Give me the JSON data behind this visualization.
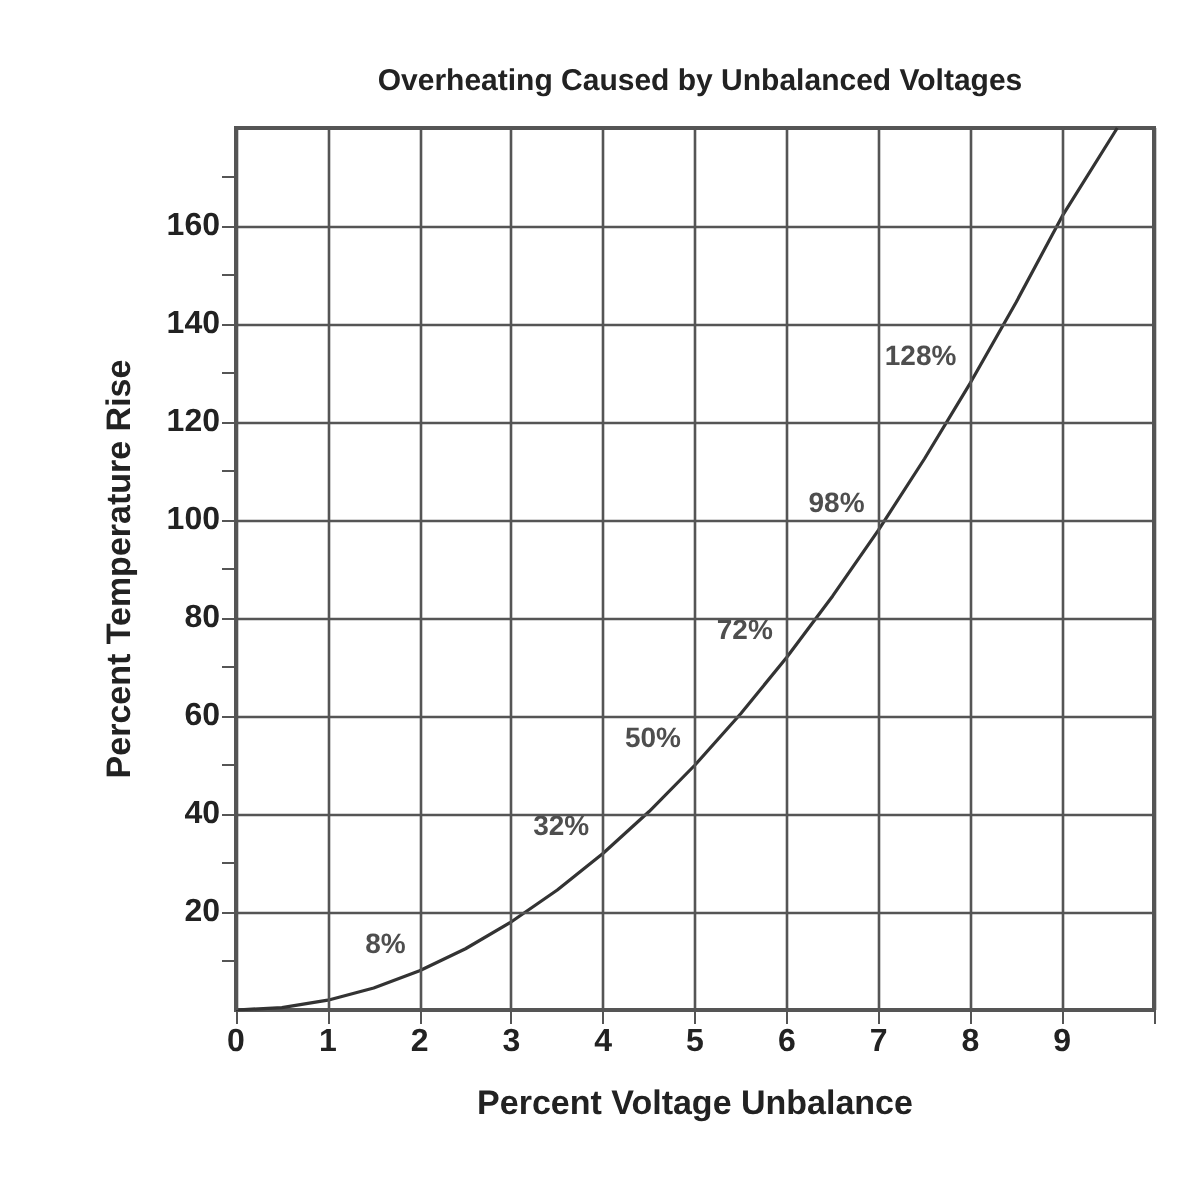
{
  "chart_data": {
    "type": "line",
    "title": "Overheating Caused by Unbalanced Voltages",
    "xlabel": "Percent Voltage Unbalance",
    "ylabel": "Percent Temperature Rise",
    "x": [
      0,
      0.5,
      1,
      1.5,
      2,
      2.5,
      3,
      3.5,
      4,
      4.5,
      5,
      5.5,
      6,
      6.5,
      7,
      7.5,
      8,
      8.5,
      9,
      9.6
    ],
    "series": [
      {
        "color": "#333333",
        "values": [
          0,
          0.5,
          2,
          4.5,
          8,
          12.5,
          18,
          24.5,
          32,
          40.5,
          50,
          60.5,
          72,
          84.5,
          98,
          112.5,
          128,
          144.5,
          162,
          180
        ]
      }
    ],
    "annotations": [
      {
        "text": "8%",
        "x": 2,
        "y": 8
      },
      {
        "text": "32%",
        "x": 4,
        "y": 32
      },
      {
        "text": "50%",
        "x": 5,
        "y": 50
      },
      {
        "text": "72%",
        "x": 6,
        "y": 72
      },
      {
        "text": "98%",
        "x": 7,
        "y": 98
      },
      {
        "text": "128%",
        "x": 8,
        "y": 128
      }
    ],
    "xlim": [
      0,
      10
    ],
    "xticks": [
      0,
      1,
      2,
      3,
      4,
      5,
      6,
      7,
      8,
      9,
      {
        "value": 10,
        "label": null
      }
    ],
    "ylim": [
      0,
      180
    ],
    "yticks": [
      {
        "value": 10,
        "label": null
      },
      20,
      {
        "value": 30,
        "label": null
      },
      40,
      {
        "value": 50,
        "label": null
      },
      60,
      {
        "value": 70,
        "label": null
      },
      80,
      {
        "value": 90,
        "label": null
      },
      100,
      {
        "value": 110,
        "label": null
      },
      120,
      {
        "value": 130,
        "label": null
      },
      140,
      {
        "value": 150,
        "label": null
      },
      160,
      {
        "value": 170,
        "label": null
      }
    ],
    "grid": true,
    "marker": "none",
    "line_style": "solid"
  }
}
